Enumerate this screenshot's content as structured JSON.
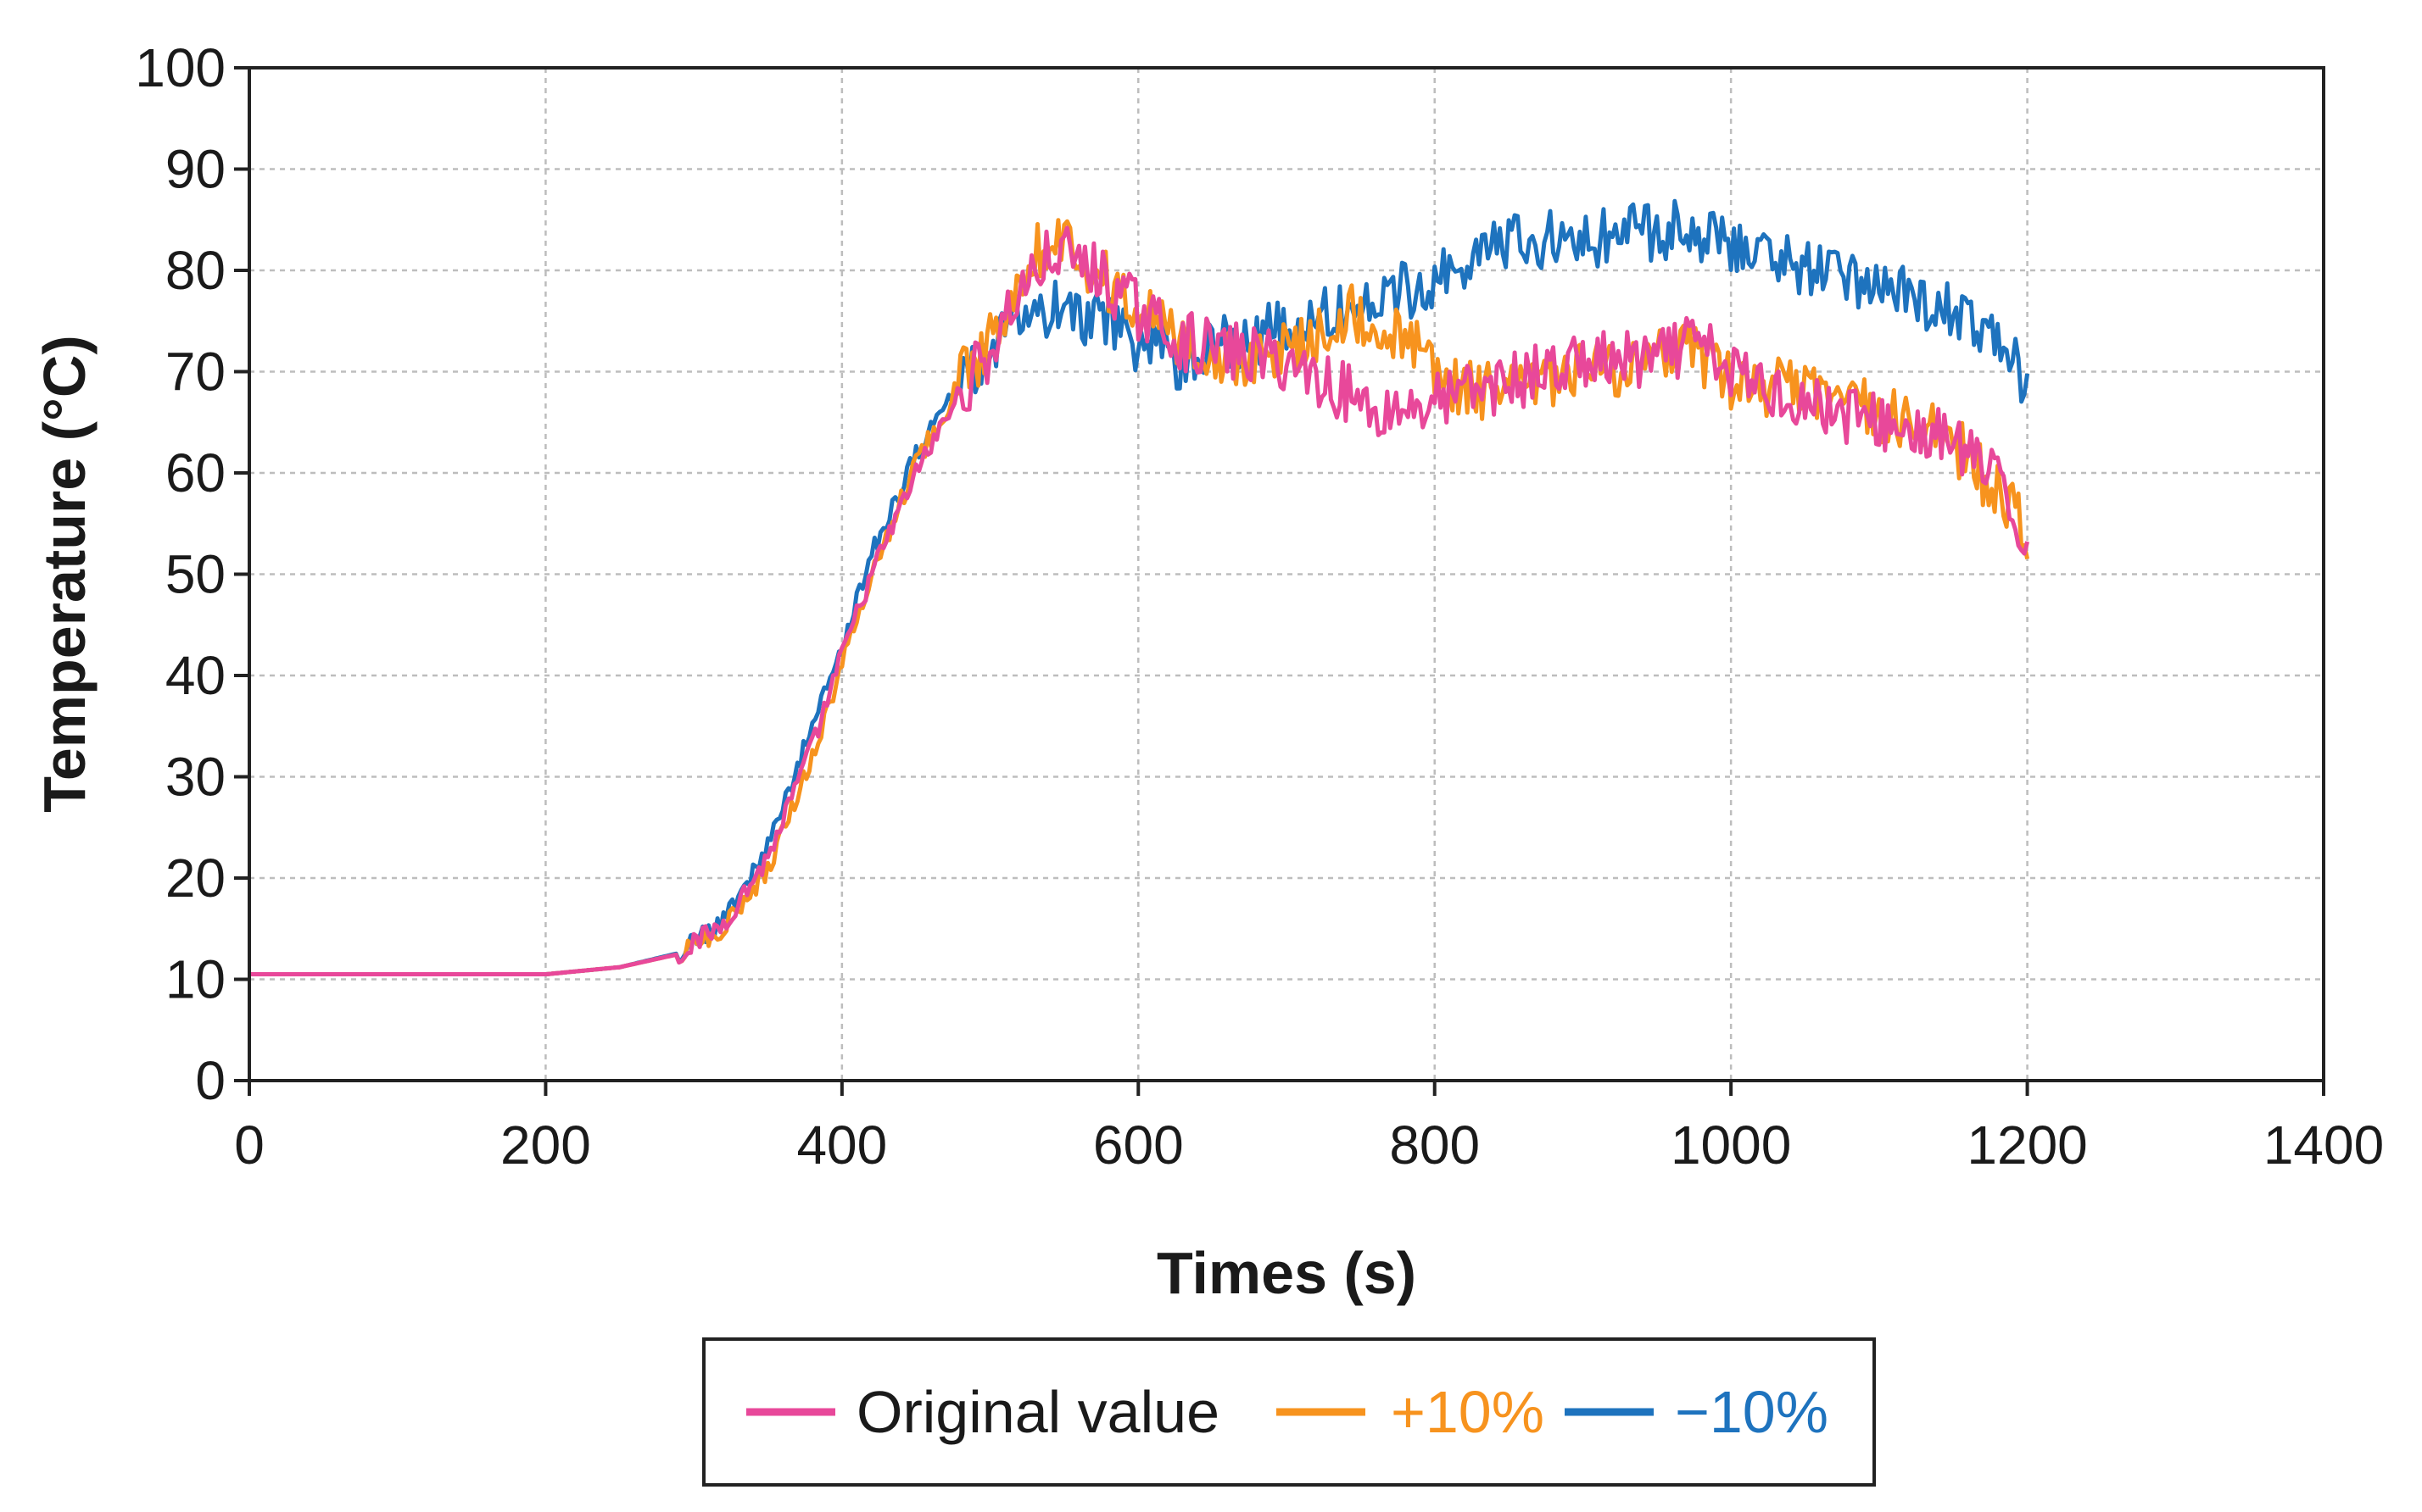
{
  "chart_data": {
    "type": "line",
    "title": "",
    "xlabel": "Times (s)",
    "ylabel": "Temperature (°C)",
    "xlim": [
      0,
      1400
    ],
    "ylim": [
      0,
      100
    ],
    "xticks": [
      "0",
      "200",
      "400",
      "600",
      "800",
      "1000",
      "1200",
      "1400"
    ],
    "yticks": [
      "0",
      "10",
      "20",
      "30",
      "40",
      "50",
      "60",
      "70",
      "80",
      "90",
      "100"
    ],
    "grid": true,
    "legend_position": "bottom",
    "noise_amplitude": 3,
    "series": [
      {
        "name": "Original value",
        "color": "#e8489a",
        "x": [
          0,
          100,
          200,
          250,
          290,
          320,
          350,
          380,
          400,
          420,
          450,
          480,
          500,
          520,
          545,
          570,
          600,
          630,
          660,
          700,
          740,
          760,
          800,
          850,
          900,
          950,
          975,
          1000,
          1050,
          1100,
          1150,
          1175,
          1200
        ],
        "y": [
          10.5,
          10.5,
          10.5,
          11.2,
          12.5,
          15.5,
          22,
          33,
          42,
          50,
          60,
          68,
          72,
          78,
          82,
          80,
          76,
          73,
          72,
          71,
          68,
          66,
          67,
          69,
          71,
          71,
          73,
          70,
          67,
          65,
          63,
          60,
          53
        ]
      },
      {
        "name": "+10%",
        "color": "#f7931e",
        "x": [
          0,
          100,
          200,
          250,
          290,
          320,
          350,
          380,
          400,
          420,
          450,
          480,
          500,
          520,
          545,
          570,
          600,
          630,
          660,
          700,
          740,
          780,
          820,
          850,
          900,
          950,
          975,
          1000,
          1050,
          1100,
          1150,
          1175,
          1200
        ],
        "y": [
          10.5,
          10.5,
          10.5,
          11.2,
          12.5,
          15,
          21,
          32,
          41,
          50,
          61,
          69,
          73,
          80,
          84,
          80,
          76,
          73,
          71,
          72,
          76,
          73,
          68,
          68,
          70,
          71,
          72,
          69,
          68,
          66,
          63,
          59,
          54
        ]
      },
      {
        "name": "−10%",
        "color": "#1e73be",
        "x": [
          0,
          100,
          200,
          250,
          290,
          320,
          350,
          380,
          400,
          420,
          450,
          480,
          500,
          520,
          545,
          570,
          600,
          630,
          660,
          700,
          740,
          780,
          820,
          850,
          900,
          950,
          975,
          1000,
          1050,
          1100,
          1150,
          1175,
          1200
        ],
        "y": [
          10.5,
          10.5,
          10.5,
          11.2,
          12.6,
          16,
          23,
          35,
          43,
          52,
          62,
          69,
          72,
          75,
          76,
          75,
          73,
          71,
          73,
          74,
          76,
          78,
          81,
          83,
          83,
          84,
          84,
          83,
          80,
          79,
          76,
          73,
          69
        ]
      }
    ]
  }
}
